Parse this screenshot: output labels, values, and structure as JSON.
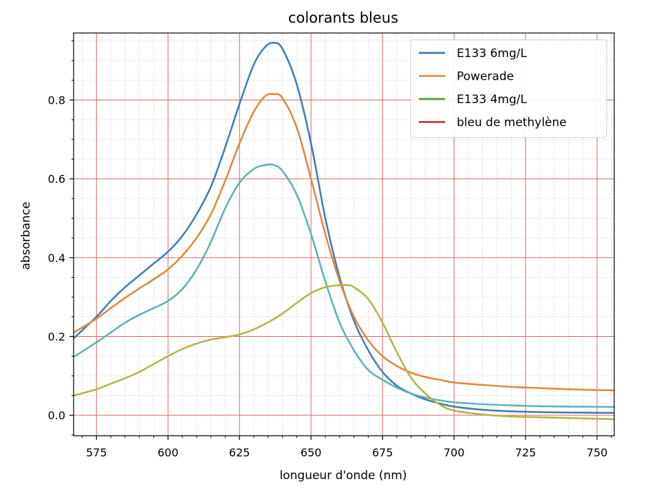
{
  "chart_data": {
    "type": "line",
    "title": "colorants bleus",
    "xlabel": "longueur d'onde (nm)",
    "ylabel": "absorbance",
    "xlim": [
      567,
      756
    ],
    "ylim": [
      -0.052,
      0.97
    ],
    "xticks": [
      575,
      600,
      625,
      650,
      675,
      700,
      725,
      750
    ],
    "yticks": [
      0.0,
      0.2,
      0.4,
      0.6,
      0.8
    ],
    "ytick_labels": [
      "0.0",
      "0.2",
      "0.4",
      "0.6",
      "0.8"
    ],
    "grid": true,
    "minor_grid": true,
    "grid_color": "#e06060",
    "minor_grid_color": "#cccccc",
    "legend_position": "top-right",
    "legend": [
      {
        "label": "E133 6mg/L",
        "color": "#3a78b0"
      },
      {
        "label": "Powerade",
        "color": "#ee8a3a"
      },
      {
        "label": "E133 4mg/L",
        "color": "#4a9e3a"
      },
      {
        "label": "bleu de methylène",
        "color": "#c0392b"
      }
    ],
    "series": [
      {
        "name": "E133 6mg/L",
        "color": "#3f7fb5",
        "x": [
          567,
          575,
          580,
          585,
          590,
          595,
          600,
          605,
          610,
          615,
          620,
          625,
          630,
          634,
          637,
          640,
          645,
          650,
          655,
          660,
          665,
          670,
          675,
          680,
          685,
          690,
          695,
          700,
          710,
          720,
          730,
          740,
          756
        ],
        "y": [
          0.195,
          0.25,
          0.29,
          0.325,
          0.355,
          0.385,
          0.415,
          0.455,
          0.51,
          0.58,
          0.68,
          0.79,
          0.89,
          0.935,
          0.945,
          0.93,
          0.84,
          0.69,
          0.5,
          0.35,
          0.24,
          0.165,
          0.11,
          0.075,
          0.055,
          0.04,
          0.03,
          0.022,
          0.014,
          0.01,
          0.008,
          0.007,
          0.006
        ]
      },
      {
        "name": "Powerade",
        "color": "#e2873f",
        "x": [
          567,
          575,
          580,
          585,
          590,
          595,
          600,
          605,
          610,
          615,
          620,
          625,
          630,
          634,
          637,
          640,
          645,
          650,
          655,
          660,
          665,
          670,
          675,
          680,
          685,
          690,
          695,
          700,
          710,
          720,
          730,
          740,
          756
        ],
        "y": [
          0.21,
          0.245,
          0.272,
          0.298,
          0.322,
          0.345,
          0.37,
          0.405,
          0.45,
          0.51,
          0.595,
          0.69,
          0.77,
          0.81,
          0.815,
          0.805,
          0.73,
          0.6,
          0.46,
          0.34,
          0.25,
          0.19,
          0.15,
          0.125,
          0.108,
          0.097,
          0.09,
          0.083,
          0.077,
          0.072,
          0.069,
          0.066,
          0.063
        ]
      },
      {
        "name": "E133 4mg/L",
        "color": "#5bb3b8",
        "x": [
          567,
          575,
          580,
          585,
          590,
          595,
          600,
          605,
          610,
          615,
          620,
          625,
          630,
          634,
          637,
          640,
          645,
          650,
          655,
          660,
          665,
          670,
          675,
          680,
          685,
          690,
          695,
          700,
          710,
          720,
          730,
          740,
          756
        ],
        "y": [
          0.148,
          0.185,
          0.21,
          0.235,
          0.255,
          0.272,
          0.29,
          0.32,
          0.37,
          0.44,
          0.525,
          0.59,
          0.625,
          0.635,
          0.635,
          0.62,
          0.56,
          0.46,
          0.34,
          0.235,
          0.165,
          0.115,
          0.09,
          0.07,
          0.055,
          0.045,
          0.038,
          0.033,
          0.028,
          0.025,
          0.023,
          0.022,
          0.021
        ]
      },
      {
        "name": "bleu de methylène",
        "color": "#b8b34a",
        "x": [
          567,
          575,
          580,
          585,
          590,
          595,
          600,
          605,
          610,
          615,
          620,
          625,
          630,
          635,
          640,
          645,
          650,
          655,
          660,
          663,
          665,
          670,
          675,
          680,
          685,
          690,
          695,
          700,
          710,
          720,
          730,
          740,
          756
        ],
        "y": [
          0.05,
          0.066,
          0.08,
          0.094,
          0.11,
          0.13,
          0.15,
          0.168,
          0.182,
          0.192,
          0.198,
          0.205,
          0.218,
          0.236,
          0.258,
          0.285,
          0.31,
          0.325,
          0.33,
          0.33,
          0.325,
          0.295,
          0.235,
          0.16,
          0.095,
          0.055,
          0.027,
          0.012,
          0.002,
          -0.003,
          -0.005,
          -0.007,
          -0.01
        ]
      }
    ]
  }
}
